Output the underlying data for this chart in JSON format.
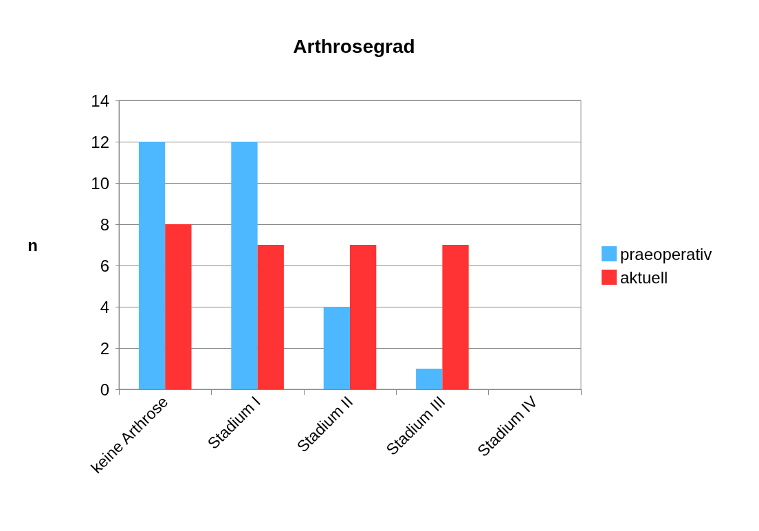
{
  "chart_data": {
    "type": "bar",
    "title": "Arthrosegrad",
    "ylabel": "n",
    "categories": [
      "keine Arthrose",
      "Stadium I",
      "Stadium II",
      "Stadium III",
      "Stadium IV"
    ],
    "series": [
      {
        "name": "praeoperativ",
        "color": "#4db8ff",
        "values": [
          12,
          12,
          4,
          1,
          0
        ]
      },
      {
        "name": "aktuell",
        "color": "#ff3333",
        "values": [
          8,
          7,
          7,
          7,
          0
        ]
      }
    ],
    "ylim": [
      0,
      14
    ],
    "yticks": [
      0,
      2,
      4,
      6,
      8,
      10,
      12,
      14
    ],
    "grid": "y",
    "legend": "right"
  }
}
